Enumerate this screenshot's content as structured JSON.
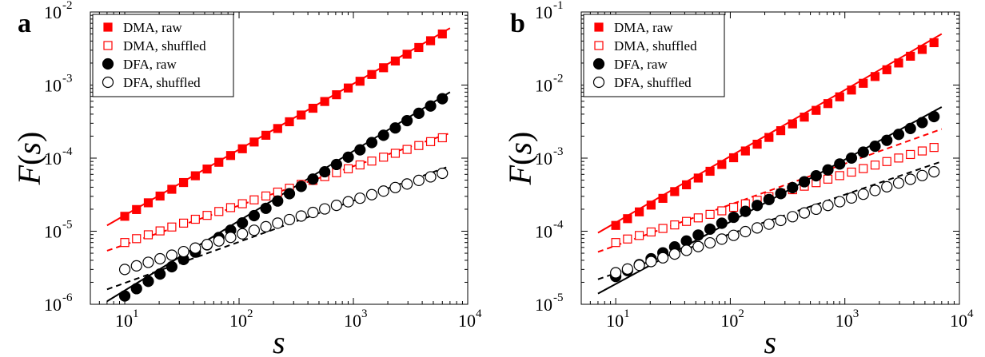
{
  "chart_data": [
    {
      "type": "scatter",
      "panel_label": "a",
      "xlabel": "s",
      "ylabel": "F(s)",
      "x_scale": "log",
      "y_scale": "log",
      "xlim": [
        5,
        10000
      ],
      "ylim": [
        1e-06,
        0.01
      ],
      "x_ticks": [
        {
          "base": "10",
          "exp": "1"
        },
        {
          "base": "10",
          "exp": "2"
        },
        {
          "base": "10",
          "exp": "3"
        },
        {
          "base": "10",
          "exp": "4"
        }
      ],
      "y_ticks": [
        {
          "base": "10",
          "exp": "-6"
        },
        {
          "base": "10",
          "exp": "-5"
        },
        {
          "base": "10",
          "exp": "-4"
        },
        {
          "base": "10",
          "exp": "-3"
        },
        {
          "base": "10",
          "exp": "-2"
        }
      ],
      "legend_position": "top-left",
      "series": [
        {
          "name": "DMA, raw",
          "marker": "square-filled",
          "color": "#ff0000",
          "x_range": [
            10,
            6000
          ],
          "n_points": 28,
          "y_start": 1.6e-05,
          "y_end": 0.005
        },
        {
          "name": "DMA, shuffled",
          "marker": "square-open",
          "color": "#ff0000",
          "x_range": [
            10,
            6000
          ],
          "n_points": 28,
          "y_start": 7e-06,
          "y_end": 0.00019
        },
        {
          "name": "DFA, raw",
          "marker": "circle-filled",
          "color": "#000000",
          "x_range": [
            10,
            6000
          ],
          "n_points": 28,
          "y_start": 1.3e-06,
          "y_end": 0.00065
        },
        {
          "name": "DFA, shuffled",
          "marker": "circle-open",
          "color": "#000000",
          "x_range": [
            10,
            6000
          ],
          "n_points": 28,
          "y_start": 3e-06,
          "y_end": 6.2e-05
        }
      ],
      "fit_lines": [
        {
          "color": "#ff0000",
          "dashed": false,
          "x": [
            7,
            7000
          ],
          "y": [
            1.2e-05,
            0.006
          ]
        },
        {
          "color": "#ff0000",
          "dashed": true,
          "x": [
            7,
            7000
          ],
          "y": [
            5.4e-06,
            0.00022
          ]
        },
        {
          "color": "#000000",
          "dashed": false,
          "x": [
            7,
            7000
          ],
          "y": [
            1.1e-06,
            0.0008
          ]
        },
        {
          "color": "#000000",
          "dashed": true,
          "x": [
            7,
            7000
          ],
          "y": [
            1.6e-06,
            7.8e-05
          ]
        }
      ]
    },
    {
      "type": "scatter",
      "panel_label": "b",
      "xlabel": "s",
      "ylabel": "F(s)",
      "x_scale": "log",
      "y_scale": "log",
      "xlim": [
        5,
        10000
      ],
      "ylim": [
        1e-05,
        0.1
      ],
      "x_ticks": [
        {
          "base": "10",
          "exp": "1"
        },
        {
          "base": "10",
          "exp": "2"
        },
        {
          "base": "10",
          "exp": "3"
        },
        {
          "base": "10",
          "exp": "4"
        }
      ],
      "y_ticks": [
        {
          "base": "10",
          "exp": "-5"
        },
        {
          "base": "10",
          "exp": "-4"
        },
        {
          "base": "10",
          "exp": "-3"
        },
        {
          "base": "10",
          "exp": "-2"
        },
        {
          "base": "10",
          "exp": "-1"
        }
      ],
      "legend_position": "top-left",
      "series": [
        {
          "name": "DMA, raw",
          "marker": "square-filled",
          "color": "#ff0000",
          "x_range": [
            10,
            6000
          ],
          "n_points": 28,
          "y_start": 0.00012,
          "y_end": 0.038
        },
        {
          "name": "DMA, shuffled",
          "marker": "square-open",
          "color": "#ff0000",
          "x_range": [
            10,
            6000
          ],
          "n_points": 28,
          "y_start": 7e-05,
          "y_end": 0.0014
        },
        {
          "name": "DFA, raw",
          "marker": "circle-filled",
          "color": "#000000",
          "x_range": [
            10,
            6000
          ],
          "n_points": 28,
          "y_start": 2.4e-05,
          "y_end": 0.0037
        },
        {
          "name": "DFA, shuffled",
          "marker": "circle-open",
          "color": "#000000",
          "x_range": [
            10,
            6000
          ],
          "n_points": 28,
          "y_start": 2.7e-05,
          "y_end": 0.00065
        }
      ],
      "fit_lines": [
        {
          "color": "#ff0000",
          "dashed": false,
          "x": [
            7,
            7000
          ],
          "y": [
            9.5e-05,
            0.05
          ]
        },
        {
          "color": "#ff0000",
          "dashed": true,
          "x": [
            7,
            7000
          ],
          "y": [
            5.2e-05,
            0.0025
          ]
        },
        {
          "color": "#000000",
          "dashed": false,
          "x": [
            7,
            7000
          ],
          "y": [
            1.4e-05,
            0.005
          ]
        },
        {
          "color": "#000000",
          "dashed": true,
          "x": [
            7,
            7000
          ],
          "y": [
            2.2e-05,
            0.0009
          ]
        }
      ]
    }
  ]
}
